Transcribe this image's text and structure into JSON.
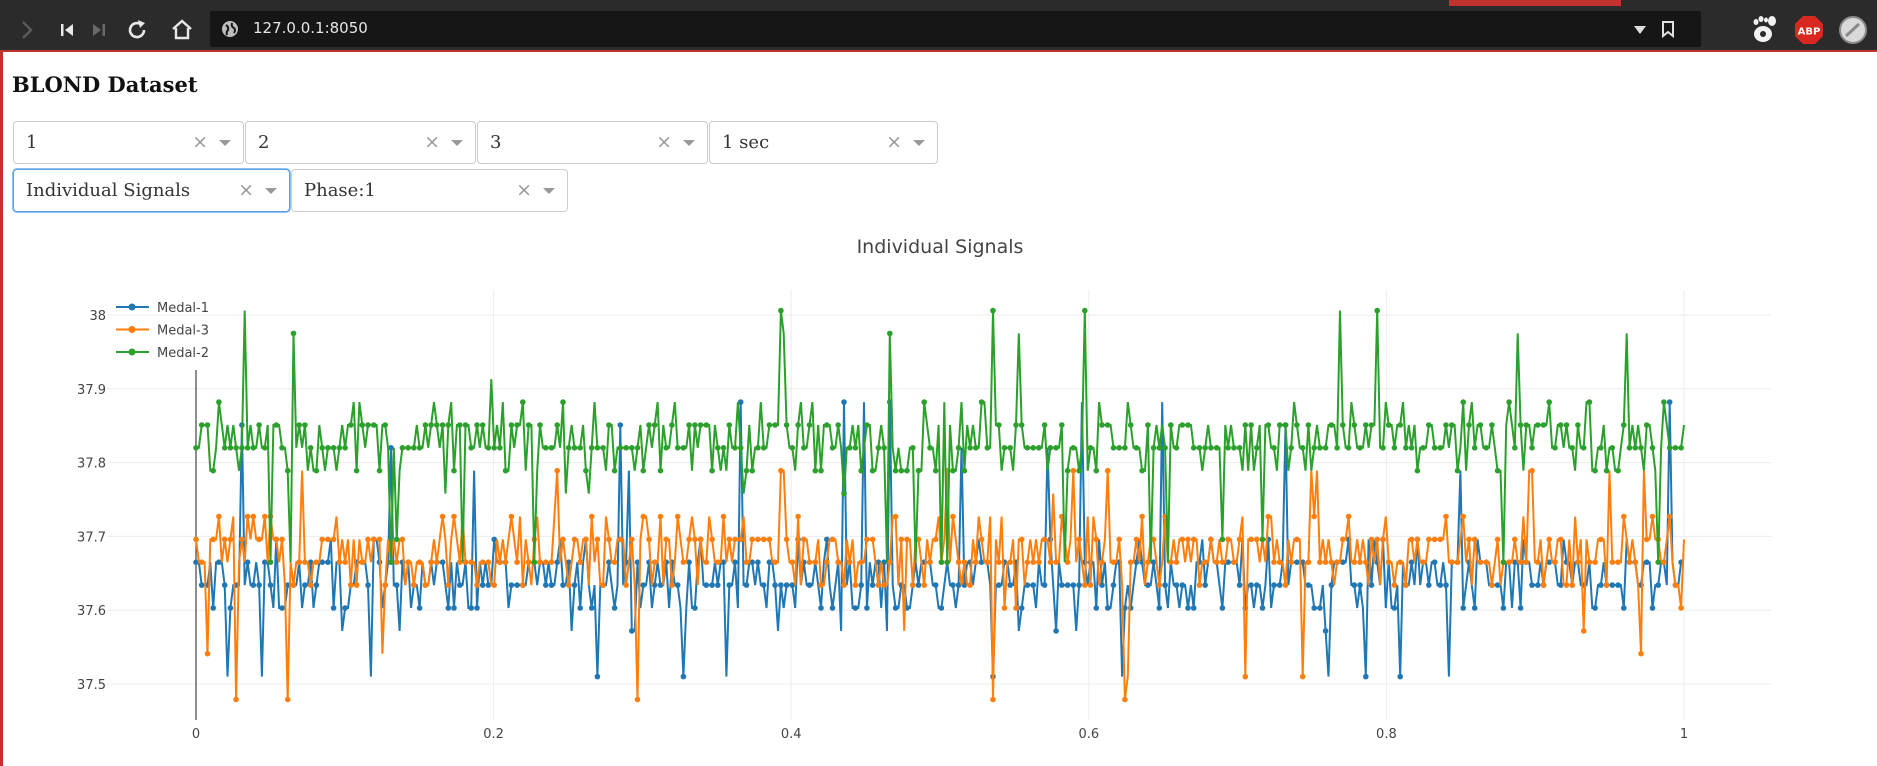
{
  "browser": {
    "url": "127.0.0.1:8050",
    "icons": [
      "forward-icon",
      "first-page-icon",
      "last-page-icon",
      "reload-icon",
      "home-icon",
      "globe-icon",
      "dropdown-icon",
      "bookmark-icon",
      "gnome-extension-icon",
      "adblock-plus-icon",
      "profile-icon"
    ],
    "adblock_label": "ABP",
    "colors": {
      "chrome": "#2b2b2b",
      "accent": "#c0332f",
      "urlbar": "#161616"
    }
  },
  "page": {
    "title": "BLOND Dataset",
    "dropdowns": [
      {
        "value": "1"
      },
      {
        "value": "2"
      },
      {
        "value": "3"
      },
      {
        "value": "1 sec"
      },
      {
        "value": "Individual Signals"
      },
      {
        "value": "Phase:1"
      }
    ],
    "clear_glyph": "×"
  },
  "chart_data": {
    "type": "line",
    "title": "Individual Signals",
    "xlabel": "",
    "ylabel": "",
    "xlim": [
      0,
      1
    ],
    "ylim": [
      37.48,
      38.02
    ],
    "xticks": [
      "0",
      "0.2",
      "0.4",
      "0.6",
      "0.8",
      "1"
    ],
    "yticks": [
      "37.5",
      "37.6",
      "37.7",
      "37.8",
      "37.9",
      "38"
    ],
    "grid": true,
    "legend_position": "top-left",
    "series": [
      {
        "name": "Medal-1",
        "color": "#1f77b4",
        "baseline": 37.64,
        "typical_range": [
          37.58,
          37.74
        ],
        "min": 37.5,
        "max": 37.89
      },
      {
        "name": "Medal-3",
        "color": "#ff7f0e",
        "baseline": 37.68,
        "typical_range": [
          37.6,
          37.76
        ],
        "min": 37.485,
        "max": 37.79
      },
      {
        "name": "Medal-2",
        "color": "#2ca02c",
        "baseline": 37.83,
        "typical_range": [
          37.76,
          37.92
        ],
        "min": 37.66,
        "max": 38.0
      }
    ]
  }
}
